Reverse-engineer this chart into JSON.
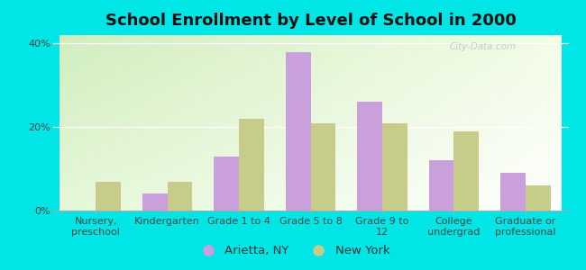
{
  "title": "School Enrollment by Level of School in 2000",
  "categories": [
    "Nursery,\npreschool",
    "Kindergarten",
    "Grade 1 to 4",
    "Grade 5 to 8",
    "Grade 9 to\n12",
    "College\nundergrad",
    "Graduate or\nprofessional"
  ],
  "arietta_values": [
    0,
    4,
    13,
    38,
    26,
    12,
    9
  ],
  "newyork_values": [
    7,
    7,
    22,
    21,
    21,
    19,
    6
  ],
  "arietta_color": "#c9a0dc",
  "newyork_color": "#c8cc8a",
  "background_color": "#00e5e5",
  "ylim": [
    0,
    42
  ],
  "yticks": [
    0,
    20,
    40
  ],
  "ytick_labels": [
    "0%",
    "20%",
    "40%"
  ],
  "legend_arietta": "Arietta, NY",
  "legend_newyork": "New York",
  "bar_width": 0.35,
  "title_fontsize": 13,
  "tick_fontsize": 8,
  "legend_fontsize": 9.5
}
